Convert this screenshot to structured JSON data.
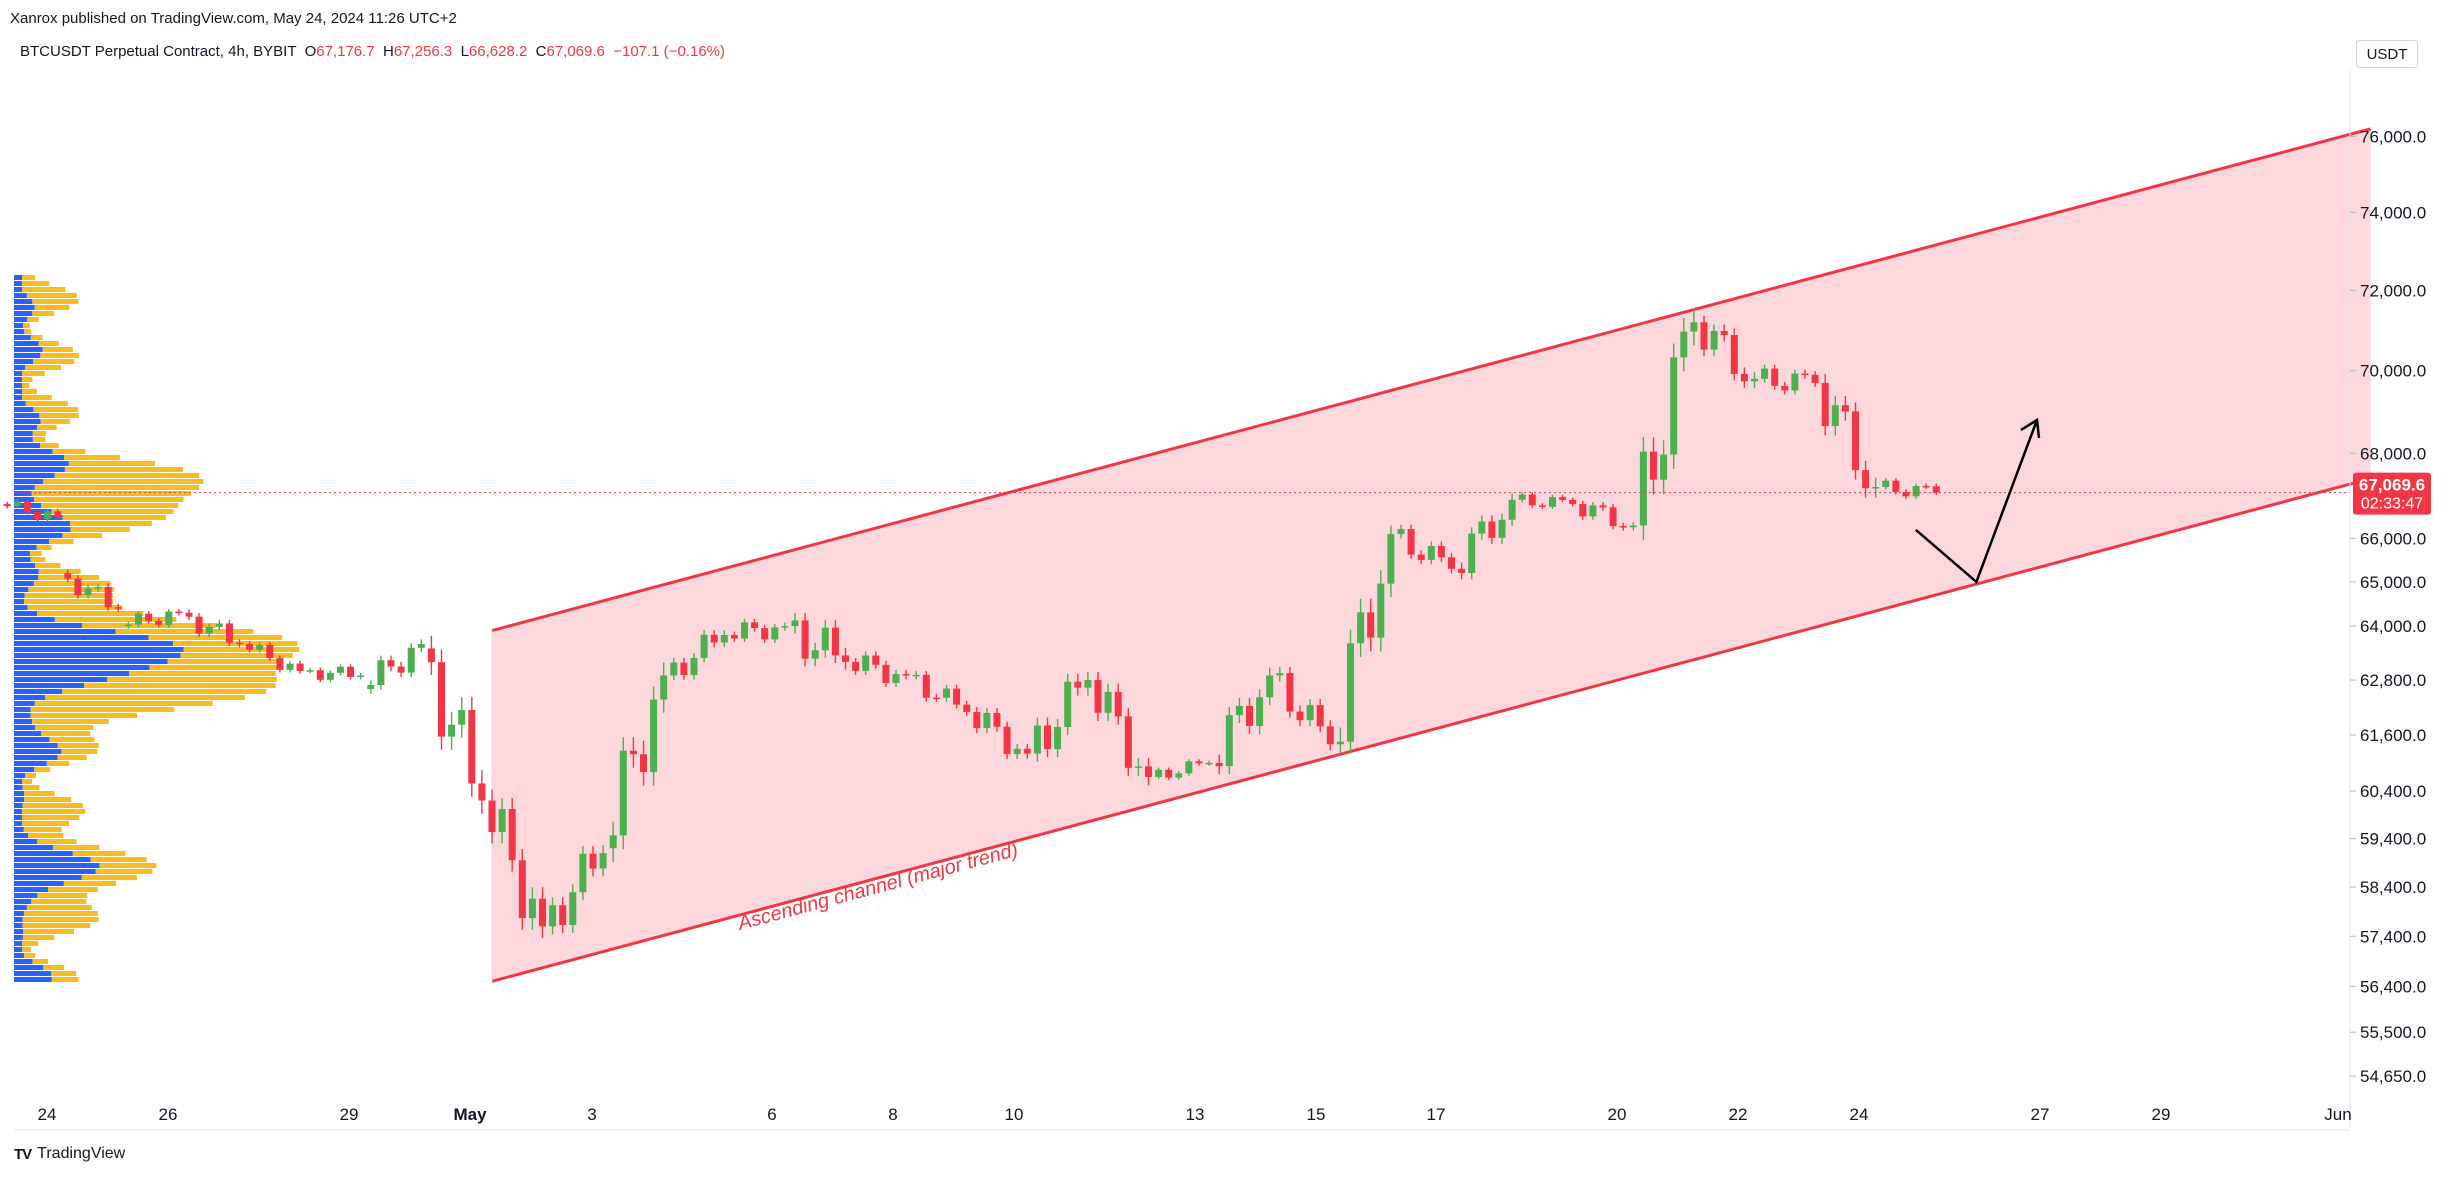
{
  "header": {
    "published": "Xanrox published on TradingView.com, May 24, 2024 11:26 UTC+2"
  },
  "legend": {
    "symbol": "BTCUSDT Perpetual Contract, 4h, BYBIT",
    "o_label": "O",
    "o_value": "67,176.7",
    "h_label": "H",
    "h_value": "67,256.3",
    "l_label": "L",
    "l_value": "66,628.2",
    "c_label": "C",
    "c_value": "67,069.6",
    "change": "−107.1 (−0.16%)"
  },
  "currency": "USDT",
  "footer": {
    "brand": "TradingView"
  },
  "colors": {
    "up": "#4caf50",
    "down": "#f23645",
    "channel_line": "#f23645",
    "channel_fill": "#fcd4d8",
    "vp_blue": "#2962ff",
    "vp_yellow": "#f5bd1f"
  },
  "chart_data": {
    "type": "candlestick",
    "y_scale": "log",
    "ylim": [
      54100,
      78200
    ],
    "y_ticks": [
      "76,000.0",
      "74,000.0",
      "72,000.0",
      "70,000.0",
      "68,000.0",
      "66,000.0",
      "65,000.0",
      "64,000.0",
      "62,800.0",
      "61,600.0",
      "60,400.0",
      "59,400.0",
      "58,400.0",
      "57,400.0",
      "56,400.0",
      "55,500.0",
      "54,650.0"
    ],
    "x_ticks": [
      "24",
      "26",
      "29",
      "May",
      "3",
      "6",
      "8",
      "10",
      "13",
      "15",
      "17",
      "20",
      "22",
      "24",
      "27",
      "29",
      "Jun"
    ],
    "current_price": {
      "label": "67,069.6",
      "countdown": "02:33:47",
      "value": 67069.6
    },
    "annotation": "Ascending channel (major trend)",
    "channel": {
      "upper": [
        [
          "May 1",
          63900
        ],
        [
          "Jun 1",
          76200
        ]
      ],
      "lower": [
        [
          "May 1",
          56500
        ],
        [
          "Jun 1",
          67400
        ]
      ]
    },
    "projection_path": [
      [
        "May 24",
        66200
      ],
      [
        "May 25",
        65000
      ],
      [
        "May 26",
        68800
      ]
    ],
    "candles_approx": [
      [
        "Apr 23",
        66800,
        67100,
        66200,
        66500
      ],
      [
        "Apr 24",
        65200,
        65500,
        64200,
        64400
      ],
      [
        "Apr 25",
        64000,
        64600,
        63600,
        64300
      ],
      [
        "Apr 26",
        64300,
        64500,
        63200,
        63600
      ],
      [
        "Apr 27",
        63600,
        63800,
        62800,
        63000
      ],
      [
        "Apr 28",
        63000,
        63500,
        62600,
        62900
      ],
      [
        "Apr 29",
        62600,
        64000,
        62300,
        63600
      ],
      [
        "Apr 30",
        63500,
        63900,
        59200,
        60200
      ],
      [
        "May 1",
        60200,
        60500,
        56600,
        57600
      ],
      [
        "May 2",
        57600,
        59600,
        56900,
        59100
      ],
      [
        "May 3",
        59200,
        63400,
        58600,
        62900
      ],
      [
        "May 4",
        62900,
        64200,
        62500,
        63800
      ],
      [
        "May 5",
        63800,
        64600,
        63300,
        64000
      ],
      [
        "May 6",
        64000,
        65500,
        62700,
        63200
      ],
      [
        "May 7",
        63200,
        64000,
        62500,
        62900
      ],
      [
        "May 8",
        62900,
        63200,
        61800,
        62100
      ],
      [
        "May 9",
        62100,
        62600,
        60800,
        61200
      ],
      [
        "May 10",
        61200,
        63500,
        60600,
        62800
      ],
      [
        "May 11",
        62800,
        63300,
        60300,
        60700
      ],
      [
        "May 12",
        60700,
        61200,
        60400,
        61000
      ],
      [
        "May 13",
        61000,
        63500,
        60600,
        62900
      ],
      [
        "May 14",
        62900,
        63200,
        61000,
        61400
      ],
      [
        "May 15",
        61400,
        66300,
        61200,
        66100
      ],
      [
        "May 16",
        66100,
        66600,
        64900,
        65300
      ],
      [
        "May 17",
        65300,
        67400,
        65000,
        66900
      ],
      [
        "May 18",
        66900,
        67300,
        66400,
        66800
      ],
      [
        "May 19",
        66800,
        67300,
        66000,
        66300
      ],
      [
        "May 20",
        66300,
        71600,
        65900,
        71200
      ],
      [
        "May 21",
        71200,
        71900,
        69200,
        69800
      ],
      [
        "May 22",
        69800,
        70600,
        69000,
        69700
      ],
      [
        "May 23",
        69700,
        70200,
        66500,
        67200
      ],
      [
        "May 24",
        67200,
        67600,
        66600,
        67070
      ]
    ]
  }
}
